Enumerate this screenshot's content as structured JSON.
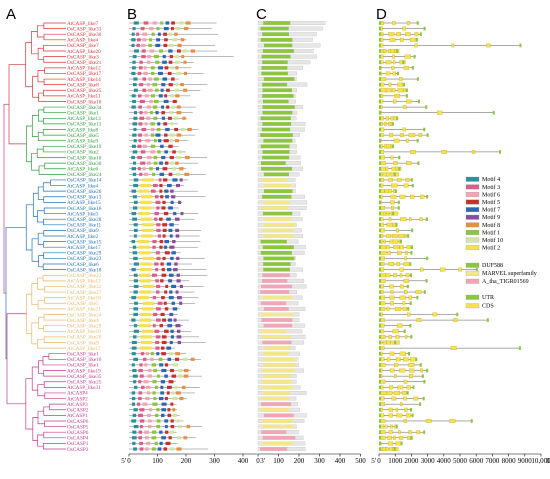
{
  "panels": [
    "A",
    "B",
    "C",
    "D"
  ],
  "colors": {
    "red": "#d9343c",
    "green": "#2f9a3c",
    "blue": "#2471b5",
    "orange": "#e7b76a",
    "magenta": "#c13d8e",
    "motif4": "#2a8f9a",
    "motif3": "#e25a86",
    "motif6": "#f5a3b5",
    "motif5": "#c8302e",
    "motif7": "#2e66b3",
    "motif9": "#8a4aa0",
    "motif8": "#e98f43",
    "motif1": "#8cc63f",
    "motif10": "#cfe7a3",
    "motif2": "#f7e14f",
    "duf588": "#8cc63f",
    "marvel": "#f3e78a",
    "atha": "#f3a5b8",
    "utr": "#8cc63f",
    "cds": "#f7e14f"
  },
  "genes": [
    {
      "name": "AtCASP_like7",
      "c": "red"
    },
    {
      "name": "OsCASP_like33",
      "c": "red"
    },
    {
      "name": "OsCASP_like30",
      "c": "red"
    },
    {
      "name": "AtCASP_like4",
      "c": "red"
    },
    {
      "name": "OsCASP_like7",
      "c": "red"
    },
    {
      "name": "AtCASP_like20",
      "c": "red"
    },
    {
      "name": "OsCASP_like3",
      "c": "red"
    },
    {
      "name": "OsCASP_like21",
      "c": "red"
    },
    {
      "name": "AtCASP_like12",
      "c": "red"
    },
    {
      "name": "OsCASP_like17",
      "c": "red"
    },
    {
      "name": "AtCASP_like14",
      "c": "red"
    },
    {
      "name": "OsCASP_like8",
      "c": "red"
    },
    {
      "name": "OsCASP_like25",
      "c": "red"
    },
    {
      "name": "AtCASP_like11",
      "c": "red"
    },
    {
      "name": "OsCASP_like10",
      "c": "red"
    },
    {
      "name": "OsCASP_like34",
      "c": "green"
    },
    {
      "name": "OsCASP_like1",
      "c": "green"
    },
    {
      "name": "AtCASP_like13",
      "c": "green"
    },
    {
      "name": "OsCASP_like13",
      "c": "green"
    },
    {
      "name": "AtCASP_like8",
      "c": "green"
    },
    {
      "name": "OsCASP_like5",
      "c": "green"
    },
    {
      "name": "AtCASP_like9",
      "c": "green"
    },
    {
      "name": "OsCASP_like19",
      "c": "green"
    },
    {
      "name": "OsCASP_like2",
      "c": "green"
    },
    {
      "name": "OsCASP_like10",
      "c": "green"
    },
    {
      "name": "OsCASP_like30",
      "c": "green"
    },
    {
      "name": "AtCASP_like6",
      "c": "green"
    },
    {
      "name": "OsCASP_like24",
      "c": "green"
    },
    {
      "name": "OsCASP_like14",
      "c": "blue"
    },
    {
      "name": "AtCASP_like4",
      "c": "blue"
    },
    {
      "name": "OsCASP_like26",
      "c": "blue"
    },
    {
      "name": "OsCASP_like13",
      "c": "blue"
    },
    {
      "name": "AtCASP_like15",
      "c": "blue"
    },
    {
      "name": "OsCASP_like16",
      "c": "blue"
    },
    {
      "name": "AtCASP_like3",
      "c": "blue"
    },
    {
      "name": "OsCASP_like28",
      "c": "blue"
    },
    {
      "name": "OsCASP_like11",
      "c": "blue"
    },
    {
      "name": "OsCASP_like9",
      "c": "blue"
    },
    {
      "name": "AtCASP_like2",
      "c": "blue"
    },
    {
      "name": "OsCASP_like15",
      "c": "blue"
    },
    {
      "name": "AtCASP_like17",
      "c": "blue"
    },
    {
      "name": "OsCASP_like29",
      "c": "blue"
    },
    {
      "name": "OsCASP_like23",
      "c": "blue"
    },
    {
      "name": "OsCASP_like6",
      "c": "blue"
    },
    {
      "name": "OsCASP_like18",
      "c": "blue"
    },
    {
      "name": "OsCASP_like22",
      "c": "orange"
    },
    {
      "name": "AtCASP_like12",
      "c": "orange"
    },
    {
      "name": "OsCASP_like32",
      "c": "orange"
    },
    {
      "name": "OsCASP_like27",
      "c": "orange"
    },
    {
      "name": "AtCASP_like18",
      "c": "orange"
    },
    {
      "name": "OsCASP_like5",
      "c": "orange"
    },
    {
      "name": "AtCASP_like21",
      "c": "orange"
    },
    {
      "name": "OsCASP_like24",
      "c": "orange"
    },
    {
      "name": "OsCASP_like4",
      "c": "orange"
    },
    {
      "name": "OsCASP_like29",
      "c": "orange"
    },
    {
      "name": "AtCASP_like10",
      "c": "orange"
    },
    {
      "name": "OsCASP_like20",
      "c": "orange"
    },
    {
      "name": "OsCASP_like9",
      "c": "orange"
    },
    {
      "name": "AtCASP_like17",
      "c": "orange"
    },
    {
      "name": "OsCASP_like1",
      "c": "magenta"
    },
    {
      "name": "OsCASP_like16",
      "c": "magenta"
    },
    {
      "name": "OsCASP_like1",
      "c": "magenta"
    },
    {
      "name": "AtCASP_like19",
      "c": "magenta"
    },
    {
      "name": "OsCASP_like35",
      "c": "magenta"
    },
    {
      "name": "OsCASP_like25",
      "c": "magenta"
    },
    {
      "name": "AtCASP_like31",
      "c": "magenta"
    },
    {
      "name": "AtCASP4",
      "c": "magenta"
    },
    {
      "name": "AtCASP2",
      "c": "magenta"
    },
    {
      "name": "AtCASP3",
      "c": "magenta"
    },
    {
      "name": "OsCASP2",
      "c": "magenta"
    },
    {
      "name": "AtCASP1",
      "c": "magenta"
    },
    {
      "name": "OsCASP6",
      "c": "magenta"
    },
    {
      "name": "OsCASP5",
      "c": "magenta"
    },
    {
      "name": "OsCASP6",
      "c": "magenta"
    },
    {
      "name": "OsCASP4",
      "c": "magenta"
    },
    {
      "name": "OsCASP1",
      "c": "magenta"
    },
    {
      "name": "OsCASP3",
      "c": "magenta"
    }
  ],
  "axes": {
    "b": {
      "start": "5'",
      "end": "3'",
      "ticks": [
        "0",
        "100",
        "200",
        "300",
        "400"
      ]
    },
    "c": {
      "ticks": [
        "0",
        "100",
        "200",
        "300",
        "400",
        "500"
      ]
    },
    "d": {
      "start": "5'",
      "end": "3'",
      "ticks": [
        "0",
        "1000",
        "2000",
        "3000",
        "4000",
        "5000",
        "6000",
        "7000",
        "8000",
        "9000",
        "10,000"
      ]
    }
  },
  "legend_motifs": [
    {
      "label": "Motif 4",
      "color": "#2a8f9a"
    },
    {
      "label": "Motif 3",
      "color": "#e25a86"
    },
    {
      "label": "Motif 6",
      "color": "#f5a3b5"
    },
    {
      "label": "Motif 5",
      "color": "#c8302e"
    },
    {
      "label": "Motif 7",
      "color": "#2e66b3"
    },
    {
      "label": "Motif 9",
      "color": "#8a4aa0"
    },
    {
      "label": "Motif 8",
      "color": "#e98f43"
    },
    {
      "label": "Motif 1",
      "color": "#8cc63f"
    },
    {
      "label": "Motif 10",
      "color": "#cfe7a3"
    },
    {
      "label": "Motif 2",
      "color": "#f7e14f"
    }
  ],
  "legend_domains": [
    {
      "label": "DUF588",
      "color": "#8cc63f"
    },
    {
      "label": "MARVEL superfamily",
      "color": "#f3e78a"
    },
    {
      "label": "A_tha_TIGR01569",
      "color": "#f3a5b8"
    }
  ],
  "legend_structure": [
    {
      "label": "UTR",
      "color": "#8cc63f"
    },
    {
      "label": "CDS",
      "color": "#f7e14f"
    }
  ]
}
